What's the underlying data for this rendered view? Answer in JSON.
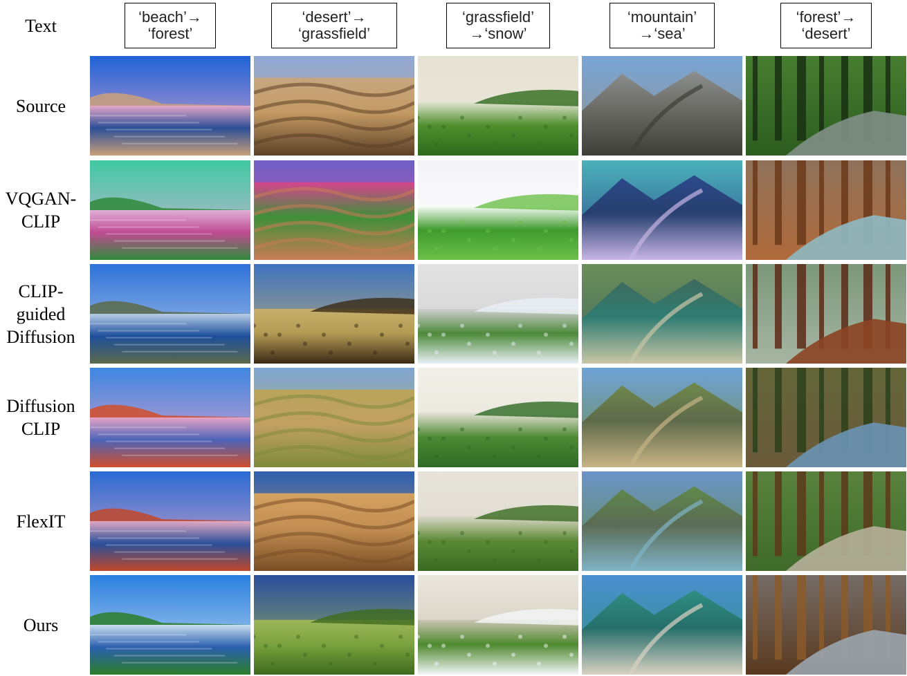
{
  "header_label": "Text",
  "prompts": [
    "‘beach’→\n‘forest’",
    "‘desert’→\n‘grassfield’",
    "‘grassfield’\n→‘snow’",
    "‘mountain’\n→‘sea’",
    "‘forest’→\n‘desert’"
  ],
  "rows": [
    {
      "label": "Source",
      "cells": [
        {
          "kind": "beach",
          "sky": "#1f63d8",
          "haze": "#e3a6c8",
          "ground": "#2b4f97",
          "accent": "#caa07a"
        },
        {
          "kind": "dunes",
          "sky": "#8fa8d6",
          "haze": "#c7a780",
          "ground": "#c49a64",
          "accent": "#5b4026"
        },
        {
          "kind": "field",
          "sky": "#e6e2d3",
          "haze": "#eae7da",
          "ground": "#4f8f2c",
          "accent": "#2f6a1d"
        },
        {
          "kind": "mountain",
          "sky": "#7aa6d6",
          "haze": "#8c8f8e",
          "ground": "#6b6b66",
          "accent": "#3d3f38"
        },
        {
          "kind": "forest",
          "sky": "#6fae4a",
          "haze": "#2d5d1f",
          "ground": "#7f8f86",
          "accent": "#173012"
        }
      ]
    },
    {
      "label": "VQGAN-\nCLIP",
      "cells": [
        {
          "kind": "beach",
          "sky": "#3fc9a2",
          "haze": "#e0b0d8",
          "ground": "#c04a92",
          "accent": "#2f8a3a"
        },
        {
          "kind": "dunes",
          "sky": "#6f61c8",
          "haze": "#d6448e",
          "ground": "#3f8f3a",
          "accent": "#c97c54"
        },
        {
          "kind": "field",
          "sky": "#f4f3f8",
          "haze": "#ffffff",
          "ground": "#3f9b2e",
          "accent": "#6cc04a"
        },
        {
          "kind": "mountain",
          "sky": "#4cb1b9",
          "haze": "#2b4a8c",
          "ground": "#27406f",
          "accent": "#c7b5e4"
        },
        {
          "kind": "forest",
          "sky": "#5a7d8c",
          "haze": "#b06a3a",
          "ground": "#8fb9c2",
          "accent": "#6b3a1a"
        }
      ]
    },
    {
      "label": "CLIP-\nguided\nDiffusion",
      "cells": [
        {
          "kind": "beach",
          "sky": "#2f72da",
          "haze": "#b7cde6",
          "ground": "#1d4e9b",
          "accent": "#5c6a4a"
        },
        {
          "kind": "field",
          "sky": "#3f74c0",
          "haze": "#c8b06c",
          "ground": "#b39b54",
          "accent": "#3a2a16"
        },
        {
          "kind": "field",
          "sky": "#e2e2e2",
          "haze": "#cfcfcf",
          "ground": "#4e8a3a",
          "accent": "#e8f0f6"
        },
        {
          "kind": "mountain",
          "sky": "#6c8e5a",
          "haze": "#3f6a5c",
          "ground": "#2f7c72",
          "accent": "#c9c6a6"
        },
        {
          "kind": "forest",
          "sky": "#3d6a3e",
          "haze": "#a6b5a3",
          "ground": "#8b4424",
          "accent": "#5a2a16"
        }
      ]
    },
    {
      "label": "Diffusion\nCLIP",
      "cells": [
        {
          "kind": "beach",
          "sky": "#3f86e2",
          "haze": "#e6a3c4",
          "ground": "#4c63b8",
          "accent": "#d24f2a"
        },
        {
          "kind": "dunes",
          "sky": "#7fa6d2",
          "haze": "#b9a45a",
          "ground": "#c2a063",
          "accent": "#7e8a3c"
        },
        {
          "kind": "field",
          "sky": "#f1efe7",
          "haze": "#e5e2d6",
          "ground": "#4e8a34",
          "accent": "#2f6a26"
        },
        {
          "kind": "mountain",
          "sky": "#6fa2d6",
          "haze": "#6f8a4c",
          "ground": "#5e6a4a",
          "accent": "#c8b486"
        },
        {
          "kind": "forest",
          "sky": "#5b7a3a",
          "haze": "#6a5a3a",
          "ground": "#6a93b5",
          "accent": "#2d3f1b"
        }
      ]
    },
    {
      "label": "FlexIT",
      "cells": [
        {
          "kind": "beach",
          "sky": "#2a6ad4",
          "haze": "#e0a8c2",
          "ground": "#2a4f9a",
          "accent": "#c0482a"
        },
        {
          "kind": "dunes",
          "sky": "#2d5eaf",
          "haze": "#d4a260",
          "ground": "#c28e52",
          "accent": "#7a4e26"
        },
        {
          "kind": "field",
          "sky": "#e6e3da",
          "haze": "#ddd8c9",
          "ground": "#5b8a35",
          "accent": "#3a6a22"
        },
        {
          "kind": "mountain",
          "sky": "#6d94c9",
          "haze": "#5f8a4b",
          "ground": "#5b6b55",
          "accent": "#7fb3c6"
        },
        {
          "kind": "forest",
          "sky": "#7fa75a",
          "haze": "#3f6a2a",
          "ground": "#b6b09a",
          "accent": "#5a3a1a"
        }
      ]
    },
    {
      "label": "Ours",
      "cells": [
        {
          "kind": "beach",
          "sky": "#2a7fe0",
          "haze": "#c9dff0",
          "ground": "#2a5fae",
          "accent": "#2e7d2a"
        },
        {
          "kind": "field",
          "sky": "#2b4e9c",
          "haze": "#9eb65a",
          "ground": "#7aa23e",
          "accent": "#3f6a1e"
        },
        {
          "kind": "field",
          "sky": "#e9e6dd",
          "haze": "#c9c3b1",
          "ground": "#4e8a2e",
          "accent": "#f4f6f8"
        },
        {
          "kind": "mountain",
          "sky": "#4b8fd0",
          "haze": "#2f8f82",
          "ground": "#266e6a",
          "accent": "#d8d1c2"
        },
        {
          "kind": "forest",
          "sky": "#9fb7d2",
          "haze": "#5a3a20",
          "ground": "#9aa5ae",
          "accent": "#8a5a2a"
        }
      ]
    }
  ]
}
